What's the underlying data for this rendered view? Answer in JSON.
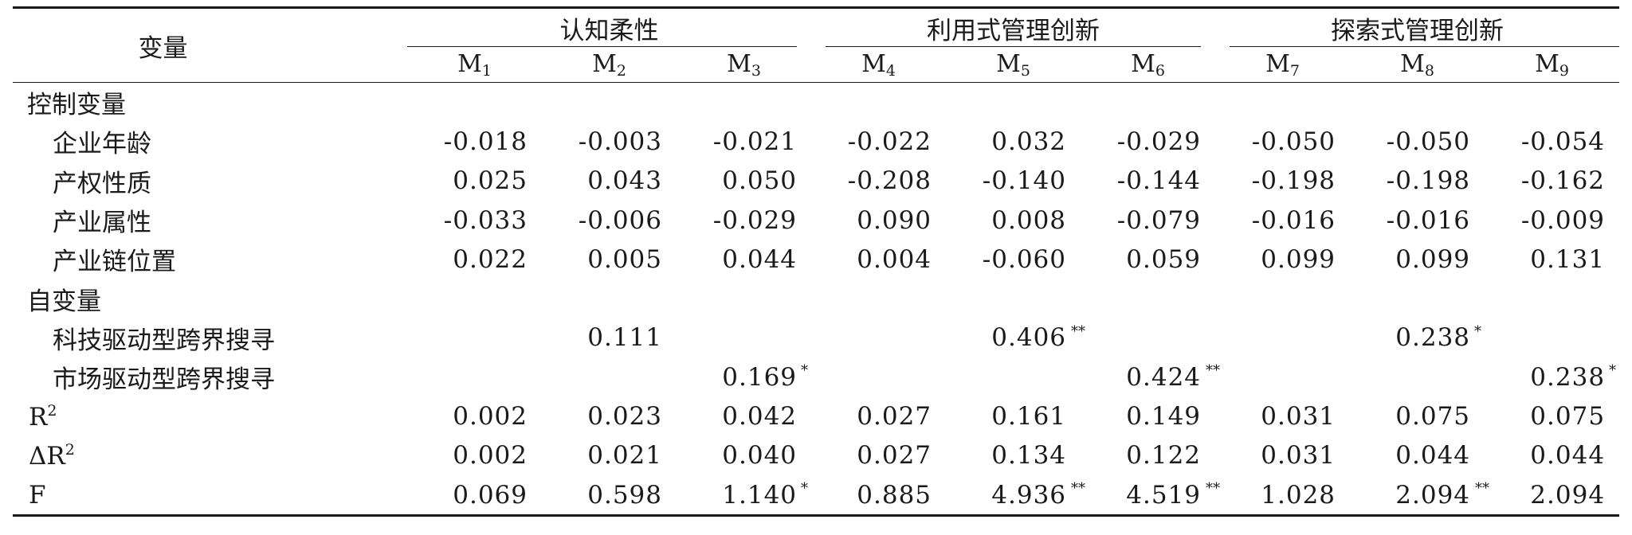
{
  "header": {
    "variable_label": "变量",
    "groups": [
      "认知柔性",
      "利用式管理创新",
      "探索式管理创新"
    ],
    "models": [
      {
        "base": "M",
        "sub": "1"
      },
      {
        "base": "M",
        "sub": "2"
      },
      {
        "base": "M",
        "sub": "3"
      },
      {
        "base": "M",
        "sub": "4"
      },
      {
        "base": "M",
        "sub": "5"
      },
      {
        "base": "M",
        "sub": "6"
      },
      {
        "base": "M",
        "sub": "7"
      },
      {
        "base": "M",
        "sub": "8"
      },
      {
        "base": "M",
        "sub": "9"
      }
    ]
  },
  "rows": [
    {
      "type": "section",
      "label": "控制变量",
      "cells": []
    },
    {
      "type": "item",
      "label": "企业年龄",
      "cells": [
        {
          "v": "-0.018"
        },
        {
          "v": "-0.003"
        },
        {
          "v": "-0.021"
        },
        {
          "v": "-0.022"
        },
        {
          "v": "0.032"
        },
        {
          "v": "-0.029"
        },
        {
          "v": "-0.050"
        },
        {
          "v": "-0.050"
        },
        {
          "v": "-0.054"
        }
      ]
    },
    {
      "type": "item",
      "label": "产权性质",
      "cells": [
        {
          "v": "0.025"
        },
        {
          "v": "0.043"
        },
        {
          "v": "0.050"
        },
        {
          "v": "-0.208"
        },
        {
          "v": "-0.140"
        },
        {
          "v": "-0.144"
        },
        {
          "v": "-0.198"
        },
        {
          "v": "-0.198"
        },
        {
          "v": "-0.162"
        }
      ]
    },
    {
      "type": "item",
      "label": "产业属性",
      "cells": [
        {
          "v": "-0.033"
        },
        {
          "v": "-0.006"
        },
        {
          "v": "-0.029"
        },
        {
          "v": "0.090"
        },
        {
          "v": "0.008"
        },
        {
          "v": "-0.079"
        },
        {
          "v": "-0.016"
        },
        {
          "v": "-0.016"
        },
        {
          "v": "-0.009"
        }
      ]
    },
    {
      "type": "item",
      "label": "产业链位置",
      "cells": [
        {
          "v": "0.022"
        },
        {
          "v": "0.005"
        },
        {
          "v": "0.044"
        },
        {
          "v": "0.004"
        },
        {
          "v": "-0.060"
        },
        {
          "v": "0.059"
        },
        {
          "v": "0.099"
        },
        {
          "v": "0.099"
        },
        {
          "v": "0.131"
        }
      ]
    },
    {
      "type": "section",
      "label": "自变量",
      "cells": []
    },
    {
      "type": "item",
      "label": "科技驱动型跨界搜寻",
      "cells": [
        {
          "v": ""
        },
        {
          "v": "0.111"
        },
        {
          "v": ""
        },
        {
          "v": ""
        },
        {
          "v": "0.406",
          "sig": "**"
        },
        {
          "v": ""
        },
        {
          "v": ""
        },
        {
          "v": "0.238",
          "sig": "*"
        },
        {
          "v": ""
        }
      ]
    },
    {
      "type": "item",
      "label": "市场驱动型跨界搜寻",
      "cells": [
        {
          "v": ""
        },
        {
          "v": ""
        },
        {
          "v": "0.169",
          "sig": "*"
        },
        {
          "v": ""
        },
        {
          "v": ""
        },
        {
          "v": "0.424",
          "sig": "**"
        },
        {
          "v": ""
        },
        {
          "v": ""
        },
        {
          "v": "0.238",
          "sig": "*"
        }
      ]
    },
    {
      "type": "stat",
      "label": "R",
      "label_sup": "2",
      "cells": [
        {
          "v": "0.002"
        },
        {
          "v": "0.023"
        },
        {
          "v": "0.042"
        },
        {
          "v": "0.027"
        },
        {
          "v": "0.161"
        },
        {
          "v": "0.149"
        },
        {
          "v": "0.031"
        },
        {
          "v": "0.075"
        },
        {
          "v": "0.075"
        }
      ]
    },
    {
      "type": "stat",
      "label": "ΔR",
      "label_sup": "2",
      "cells": [
        {
          "v": "0.002"
        },
        {
          "v": "0.021"
        },
        {
          "v": "0.040"
        },
        {
          "v": "0.027"
        },
        {
          "v": "0.134"
        },
        {
          "v": "0.122"
        },
        {
          "v": "0.031"
        },
        {
          "v": "0.044"
        },
        {
          "v": "0.044"
        }
      ]
    },
    {
      "type": "stat",
      "label": "F",
      "cells": [
        {
          "v": "0.069"
        },
        {
          "v": "0.598"
        },
        {
          "v": "1.140",
          "sig": "*"
        },
        {
          "v": "0.885"
        },
        {
          "v": "4.936",
          "sig": "**"
        },
        {
          "v": "4.519",
          "sig": "**"
        },
        {
          "v": "1.028"
        },
        {
          "v": "2.094",
          "sig": "**"
        },
        {
          "v": "2.094"
        }
      ]
    }
  ]
}
